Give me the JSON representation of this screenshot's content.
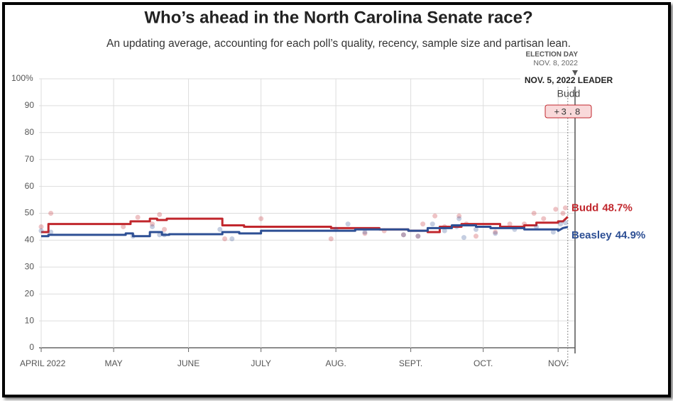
{
  "chart_data": {
    "type": "line",
    "title": "Who’s ahead in the North Carolina Senate race?",
    "subtitle": "An updating average, accounting for each poll’s quality, recency, sample size and partisan lean.",
    "xlim": [
      0,
      221
    ],
    "xticks": [
      {
        "value": 0,
        "label": "APRIL 2022"
      },
      {
        "value": 30,
        "label": "MAY"
      },
      {
        "value": 61,
        "label": "JUNE"
      },
      {
        "value": 91,
        "label": "JULY"
      },
      {
        "value": 122,
        "label": "AUG."
      },
      {
        "value": 153,
        "label": "SEPT."
      },
      {
        "value": 183,
        "label": "OCT."
      },
      {
        "value": 214,
        "label": "NOV."
      }
    ],
    "ylim": [
      0,
      100
    ],
    "yticks": [
      0,
      10,
      20,
      30,
      40,
      50,
      60,
      70,
      80,
      90,
      {
        "value": 100,
        "label": "100%"
      }
    ],
    "grid": true,
    "series": [
      {
        "name": "Budd",
        "color": "#c1272d",
        "x": [
          0,
          3,
          3,
          37,
          37,
          45,
          45,
          48,
          48,
          52,
          52,
          75,
          75,
          84,
          84,
          120,
          120,
          140,
          140,
          152,
          152,
          160,
          160,
          165,
          165,
          174,
          174,
          190,
          190,
          200,
          200,
          205,
          205,
          214,
          214,
          216,
          218
        ],
        "values": [
          43,
          43,
          46,
          46,
          47,
          47,
          48,
          48,
          47.5,
          47.5,
          48,
          48,
          45.5,
          45.5,
          45,
          45,
          44.5,
          44.5,
          44,
          44,
          43.5,
          43.5,
          43,
          43,
          45,
          45,
          46,
          46,
          45,
          45,
          45.5,
          45.5,
          46.5,
          46.5,
          47,
          47,
          48.7
        ],
        "value_labels": [
          null,
          null,
          null,
          null,
          null,
          null,
          null,
          null,
          null,
          null,
          null,
          null,
          null,
          null,
          null,
          null,
          null,
          null,
          null,
          null,
          null,
          null,
          null,
          null,
          null,
          null,
          null,
          null,
          null,
          null,
          null,
          null,
          null,
          null,
          null,
          null,
          "48.7%"
        ],
        "poll_x": [
          0,
          4,
          34,
          40,
          46,
          49,
          51,
          76,
          91,
          120,
          134,
          142,
          150,
          156,
          158,
          163,
          167,
          173,
          176,
          180,
          188,
          194,
          200,
          204,
          208,
          213,
          216,
          217
        ],
        "poll_values": [
          45,
          50,
          45,
          48.5,
          46,
          49.5,
          44,
          40.5,
          48,
          40.5,
          42.5,
          43.5,
          42,
          41.5,
          46,
          49,
          45,
          49,
          46,
          41.5,
          43,
          46,
          46,
          50,
          48,
          51.5,
          50,
          52
        ]
      },
      {
        "name": "Beasley",
        "color": "#2d4f94",
        "x": [
          0,
          3,
          3,
          35,
          35,
          38,
          38,
          45,
          45,
          50,
          50,
          53,
          53,
          75,
          75,
          82,
          82,
          91,
          91,
          130,
          130,
          152,
          152,
          160,
          160,
          170,
          170,
          180,
          180,
          186,
          186,
          200,
          200,
          214,
          214,
          216,
          218
        ],
        "values": [
          41.5,
          41.5,
          42,
          42,
          42.5,
          42.5,
          41.5,
          41.5,
          43,
          43,
          42,
          42,
          42.2,
          42.2,
          43,
          43,
          42.5,
          42.5,
          43.5,
          43.5,
          44,
          44,
          43.5,
          43.5,
          44.5,
          44.5,
          45.5,
          45.5,
          45,
          45,
          44.5,
          44.5,
          44,
          44,
          43.5,
          44.5,
          44.9
        ],
        "value_labels": [
          null,
          null,
          null,
          null,
          null,
          null,
          null,
          null,
          null,
          null,
          null,
          null,
          null,
          null,
          null,
          null,
          null,
          null,
          null,
          null,
          null,
          null,
          null,
          null,
          null,
          null,
          null,
          null,
          null,
          null,
          null,
          null,
          null,
          null,
          null,
          null,
          "44.9%"
        ],
        "poll_x": [
          0,
          4,
          38,
          46,
          49,
          51,
          74,
          79,
          122,
          127,
          134,
          150,
          156,
          162,
          167,
          172,
          173,
          175,
          180,
          188,
          196,
          205,
          212,
          215,
          217
        ],
        "poll_values": [
          43.5,
          43,
          41.5,
          45,
          42,
          42,
          44,
          40.5,
          44,
          46,
          43,
          42,
          41.5,
          46,
          43.5,
          45,
          48,
          41,
          44,
          42.5,
          44,
          45,
          43,
          46,
          46.5
        ]
      }
    ],
    "annotations": {
      "election_day": {
        "x": 221,
        "label": "ELECTION DAY",
        "date": "NOV. 8, 2022"
      },
      "leader": {
        "x": 218,
        "title": "NOV. 5, 2022 LEADER",
        "name": "Budd",
        "margin": {
          "value": 3.8,
          "label": "+3.8"
        }
      }
    }
  }
}
